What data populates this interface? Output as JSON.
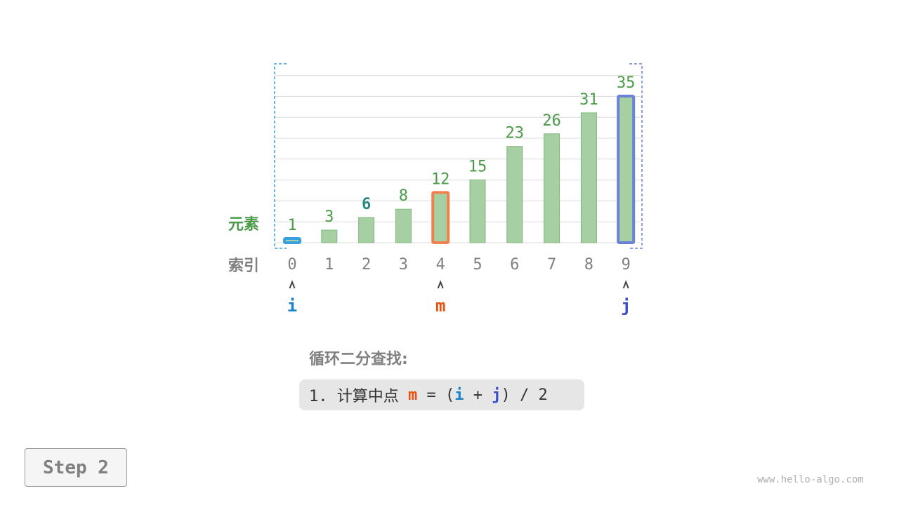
{
  "chart_data": {
    "type": "bar",
    "categories": [
      "0",
      "1",
      "2",
      "3",
      "4",
      "5",
      "6",
      "7",
      "8",
      "9"
    ],
    "values": [
      1,
      3,
      6,
      8,
      12,
      15,
      23,
      26,
      31,
      35
    ],
    "row_labels": {
      "values": "元素",
      "indices": "索引"
    },
    "highlight": {
      "i": 0,
      "m": 4,
      "j": 9
    },
    "emphasized_label_index": 2,
    "grid": true
  },
  "pointers": {
    "i": "i",
    "m": "m",
    "j": "j"
  },
  "title": "循环二分查找:",
  "formula": {
    "prefix": "1. 计算中点 ",
    "m": "m",
    "eq": " = (",
    "i": "i",
    "plus": " + ",
    "j": "j",
    "suffix": ") / 2"
  },
  "step_label": "Step 2",
  "watermark": "www.hello-algo.com",
  "colors": {
    "bar_fill": "#a6cfa3",
    "bar_stroke": "#7fb87a",
    "value_label": "#4a9a48",
    "emphasized_label": "#2a8a80",
    "i": "#1a82c8",
    "m": "#e8520f",
    "m_border": "#f08050",
    "j": "#3a4ec8",
    "j_border": "#6a82d8",
    "i_border": "#3aa0e0",
    "index_label": "#808080"
  }
}
